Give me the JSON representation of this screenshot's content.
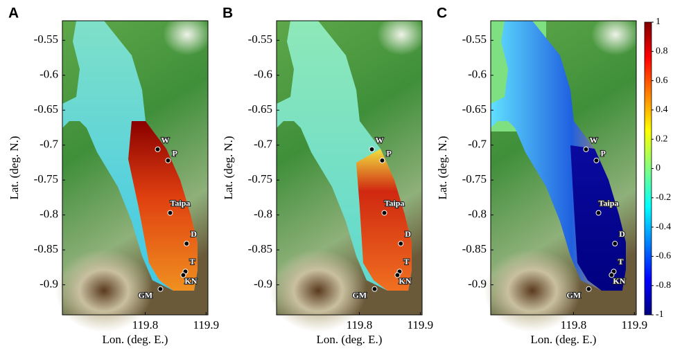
{
  "panels": [
    {
      "label": "A"
    },
    {
      "label": "B"
    },
    {
      "label": "C"
    }
  ],
  "axes": {
    "xlabel": "Lon. (deg. E.)",
    "ylabel": "Lat. (deg. N.)",
    "xlim": [
      119.664,
      119.903
    ],
    "ylim": [
      -0.943,
      -0.522
    ],
    "xticks": [
      119.8,
      119.9
    ],
    "yticks": [
      -0.55,
      -0.6,
      -0.65,
      -0.7,
      -0.75,
      -0.8,
      -0.85,
      -0.9
    ]
  },
  "sites": [
    {
      "name": "W",
      "lon": 119.8205,
      "lat": -0.706
    },
    {
      "name": "P",
      "lon": 119.8375,
      "lat": -0.722
    },
    {
      "name": "Taipa",
      "lon": 119.841,
      "lat": -0.797
    },
    {
      "name": "D",
      "lon": 119.868,
      "lat": -0.841
    },
    {
      "name": "T",
      "lon": 119.866,
      "lat": -0.881
    },
    {
      "name": "KN",
      "lon": 119.8625,
      "lat": -0.886
    },
    {
      "name": "GM",
      "lon": 119.825,
      "lat": -0.906
    }
  ],
  "colorbar": {
    "lim": [
      -1,
      1
    ],
    "ticks": [
      1,
      0.8,
      0.6,
      0.4,
      0.2,
      0,
      -0.2,
      -0.4,
      -0.6,
      -0.8,
      -1
    ]
  }
}
